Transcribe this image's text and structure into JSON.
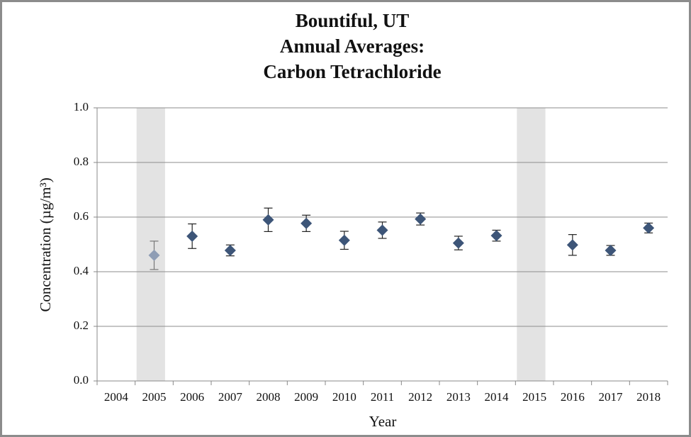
{
  "chart_data": {
    "type": "scatter",
    "title": [
      "Bountiful, UT",
      "Annual Averages:",
      "Carbon Tetrachloride"
    ],
    "x_label": "Year",
    "y_label": "Concentration (µg/m³)",
    "categories": [
      "2004",
      "2005",
      "2006",
      "2007",
      "2008",
      "2009",
      "2010",
      "2011",
      "2012",
      "2013",
      "2014",
      "2015",
      "2016",
      "2017",
      "2018"
    ],
    "series": [
      {
        "color": "#3d5578",
        "values": [
          null,
          0.46,
          0.53,
          0.478,
          0.59,
          0.577,
          0.515,
          0.552,
          0.593,
          0.505,
          0.532,
          null,
          0.498,
          0.478,
          0.56
        ],
        "errors": [
          null,
          0.052,
          0.045,
          0.02,
          0.043,
          0.03,
          0.033,
          0.03,
          0.022,
          0.025,
          0.02,
          null,
          0.038,
          0.018,
          0.018
        ],
        "point_colors": [
          null,
          "#8e9db5",
          "#3d5578",
          "#3d5578",
          "#3d5578",
          "#3d5578",
          "#3d5578",
          "#3d5578",
          "#3d5578",
          "#3d5578",
          "#3d5578",
          null,
          "#3d5578",
          "#3d5578",
          "#3d5578"
        ]
      }
    ],
    "shaded_categories": [
      "2005",
      "2015"
    ],
    "shade_color": "#e3e3e3",
    "ylim": [
      0,
      1
    ],
    "yticks": [
      {
        "value": 0,
        "label": "0.0"
      },
      0.2,
      0.4,
      0.6,
      0.8,
      {
        "value": 1,
        "label": "1.0"
      }
    ],
    "grid": true
  }
}
